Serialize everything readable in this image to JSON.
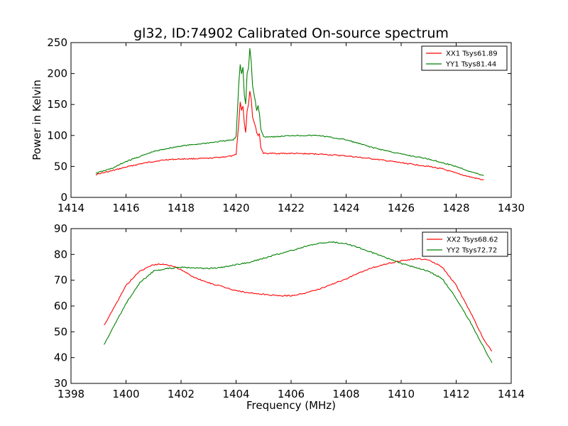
{
  "chart_data": [
    {
      "type": "line",
      "title": "gl32, ID:74902 Calibrated On-source spectrum",
      "xlabel": "",
      "ylabel": "Power in Kelvin",
      "xlim": [
        1414,
        1430
      ],
      "ylim": [
        0,
        250
      ],
      "xticks": [
        "1414",
        "1416",
        "1418",
        "1420",
        "1422",
        "1424",
        "1426",
        "1428",
        "1430"
      ],
      "yticks": [
        "0",
        "50",
        "100",
        "150",
        "200",
        "250"
      ],
      "grid": false,
      "legend_position": "top-right",
      "series": [
        {
          "name": "XX1 Tsys61.89",
          "color": "#ff0000",
          "points": [
            [
              1414.9,
              37
            ],
            [
              1415.5,
              43
            ],
            [
              1416,
              49
            ],
            [
              1416.5,
              54
            ],
            [
              1417,
              58
            ],
            [
              1417.5,
              61
            ],
            [
              1418,
              62
            ],
            [
              1419,
              63
            ],
            [
              1419.9,
              67
            ],
            [
              1420.0,
              70
            ],
            [
              1420.1,
              120
            ],
            [
              1420.15,
              155
            ],
            [
              1420.2,
              140
            ],
            [
              1420.25,
              148
            ],
            [
              1420.3,
              120
            ],
            [
              1420.35,
              105
            ],
            [
              1420.4,
              140
            ],
            [
              1420.45,
              150
            ],
            [
              1420.5,
              172
            ],
            [
              1420.55,
              160
            ],
            [
              1420.6,
              130
            ],
            [
              1420.7,
              115
            ],
            [
              1420.75,
              105
            ],
            [
              1420.8,
              100
            ],
            [
              1420.85,
              103
            ],
            [
              1420.9,
              80
            ],
            [
              1421.0,
              71
            ],
            [
              1421.5,
              71
            ],
            [
              1422,
              71
            ],
            [
              1423,
              70
            ],
            [
              1424,
              67
            ],
            [
              1425,
              62
            ],
            [
              1426,
              56
            ],
            [
              1427,
              50
            ],
            [
              1427.5,
              46
            ],
            [
              1428,
              39
            ],
            [
              1428.5,
              33
            ],
            [
              1429.0,
              28
            ]
          ]
        },
        {
          "name": "YY1 Tsys81.44",
          "color": "#008000",
          "points": [
            [
              1414.9,
              39
            ],
            [
              1415.5,
              47
            ],
            [
              1416,
              58
            ],
            [
              1416.5,
              66
            ],
            [
              1417,
              74
            ],
            [
              1417.5,
              79
            ],
            [
              1418,
              83
            ],
            [
              1419,
              88
            ],
            [
              1419.9,
              93
            ],
            [
              1420.0,
              98
            ],
            [
              1420.05,
              140
            ],
            [
              1420.1,
              185
            ],
            [
              1420.15,
              215
            ],
            [
              1420.2,
              200
            ],
            [
              1420.25,
              210
            ],
            [
              1420.3,
              165
            ],
            [
              1420.35,
              150
            ],
            [
              1420.4,
              200
            ],
            [
              1420.45,
              208
            ],
            [
              1420.5,
              240
            ],
            [
              1420.55,
              220
            ],
            [
              1420.6,
              180
            ],
            [
              1420.7,
              155
            ],
            [
              1420.75,
              140
            ],
            [
              1420.8,
              148
            ],
            [
              1420.85,
              135
            ],
            [
              1420.9,
              110
            ],
            [
              1421.0,
              98
            ],
            [
              1421.5,
              98
            ],
            [
              1422,
              100
            ],
            [
              1423,
              100
            ],
            [
              1424,
              93
            ],
            [
              1425,
              80
            ],
            [
              1426,
              70
            ],
            [
              1427,
              62
            ],
            [
              1428,
              50
            ],
            [
              1428.5,
              42
            ],
            [
              1429.0,
              35
            ]
          ]
        }
      ]
    },
    {
      "type": "line",
      "title": "",
      "xlabel": "Frequency (MHz)",
      "ylabel": "",
      "xlim": [
        1398,
        1414
      ],
      "ylim": [
        30,
        90
      ],
      "xticks": [
        "1398",
        "1400",
        "1402",
        "1404",
        "1406",
        "1408",
        "1410",
        "1412",
        "1414"
      ],
      "yticks": [
        "30",
        "40",
        "50",
        "60",
        "70",
        "80",
        "90"
      ],
      "grid": false,
      "legend_position": "top-right",
      "series": [
        {
          "name": "XX2 Tsys68.62",
          "color": "#ff0000",
          "points": [
            [
              1399.2,
              52.5
            ],
            [
              1399.6,
              60
            ],
            [
              1400,
              68
            ],
            [
              1400.5,
              73.5
            ],
            [
              1401,
              76
            ],
            [
              1401.3,
              76.3
            ],
            [
              1401.7,
              75.5
            ],
            [
              1402,
              74
            ],
            [
              1402.5,
              71
            ],
            [
              1403,
              69
            ],
            [
              1403.5,
              67.5
            ],
            [
              1404,
              66
            ],
            [
              1404.5,
              65
            ],
            [
              1405,
              64.5
            ],
            [
              1405.5,
              64
            ],
            [
              1406,
              64
            ],
            [
              1406.5,
              65
            ],
            [
              1407,
              66.5
            ],
            [
              1407.5,
              68.5
            ],
            [
              1408,
              70.5
            ],
            [
              1408.5,
              73
            ],
            [
              1409,
              75
            ],
            [
              1409.5,
              76.5
            ],
            [
              1410,
              77.5
            ],
            [
              1410.5,
              78.3
            ],
            [
              1411,
              78
            ],
            [
              1411.5,
              75
            ],
            [
              1412,
              68
            ],
            [
              1412.5,
              58
            ],
            [
              1413,
              47
            ],
            [
              1413.3,
              42.5
            ]
          ]
        },
        {
          "name": "YY2 Tsys72.72",
          "color": "#008000",
          "points": [
            [
              1399.2,
              45
            ],
            [
              1399.6,
              53
            ],
            [
              1400,
              61
            ],
            [
              1400.5,
              69
            ],
            [
              1401,
              73.5
            ],
            [
              1401.5,
              74.5
            ],
            [
              1402,
              75
            ],
            [
              1402.5,
              74.8
            ],
            [
              1403,
              74.5
            ],
            [
              1403.5,
              75
            ],
            [
              1404,
              76
            ],
            [
              1404.5,
              77
            ],
            [
              1405,
              78.5
            ],
            [
              1405.5,
              80
            ],
            [
              1406,
              81.5
            ],
            [
              1406.5,
              83
            ],
            [
              1407,
              84.3
            ],
            [
              1407.5,
              84.8
            ],
            [
              1408,
              84.2
            ],
            [
              1408.5,
              82.5
            ],
            [
              1409,
              80.5
            ],
            [
              1409.5,
              78.5
            ],
            [
              1410,
              76.5
            ],
            [
              1410.5,
              75
            ],
            [
              1411,
              73.5
            ],
            [
              1411.5,
              70.5
            ],
            [
              1412,
              63
            ],
            [
              1412.5,
              54
            ],
            [
              1413,
              44
            ],
            [
              1413.3,
              38
            ]
          ]
        }
      ]
    }
  ]
}
